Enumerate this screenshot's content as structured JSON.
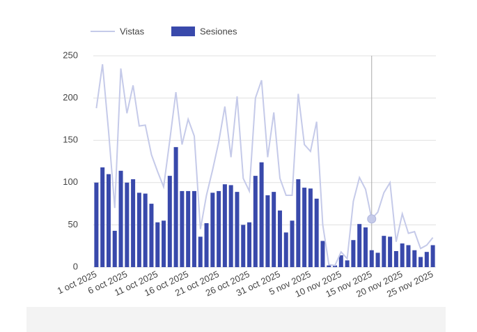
{
  "chart_data": {
    "type": "bar_line",
    "categories": [
      "1 oct 2025",
      null,
      null,
      null,
      null,
      "6 oct 2025",
      null,
      null,
      null,
      null,
      "11 oct 2025",
      null,
      null,
      null,
      null,
      "16 oct 2025",
      null,
      null,
      null,
      null,
      "21 oct 2025",
      null,
      null,
      null,
      null,
      "26 oct 2025",
      null,
      null,
      null,
      null,
      "31 oct 2025",
      null,
      null,
      null,
      null,
      "5 nov 2025",
      null,
      null,
      null,
      null,
      "10 nov 2025",
      null,
      null,
      null,
      null,
      "15 nov 2025",
      null,
      null,
      null,
      null,
      "20 nov 2025",
      null,
      null,
      null,
      null,
      "25 nov 2025"
    ],
    "series": [
      {
        "name": "Vistas",
        "color": "#c5cae9",
        "kind": "line",
        "values": [
          188,
          240,
          160,
          70,
          235,
          182,
          215,
          167,
          168,
          133,
          113,
          95,
          150,
          207,
          145,
          175,
          155,
          45,
          85,
          115,
          148,
          190,
          130,
          202,
          105,
          90,
          200,
          221,
          130,
          183,
          105,
          85,
          85,
          205,
          145,
          137,
          172,
          50,
          3,
          2,
          18,
          10,
          78,
          106,
          92,
          57,
          65,
          88,
          100,
          30,
          63,
          40,
          42,
          22,
          26,
          35
        ]
      },
      {
        "name": "Sesiones",
        "color": "#3949ab",
        "kind": "bar",
        "values": [
          100,
          118,
          110,
          43,
          114,
          100,
          104,
          88,
          87,
          75,
          53,
          55,
          108,
          142,
          90,
          90,
          90,
          36,
          52,
          88,
          90,
          98,
          97,
          89,
          50,
          53,
          108,
          124,
          85,
          89,
          67,
          41,
          55,
          104,
          94,
          93,
          81,
          31,
          2,
          2,
          14,
          8,
          32,
          51,
          47,
          20,
          17,
          37,
          36,
          19,
          28,
          26,
          20,
          12,
          18,
          26
        ]
      }
    ],
    "ylim": [
      0,
      250
    ],
    "yticks": [
      0,
      50,
      100,
      150,
      200,
      250
    ],
    "grid": true,
    "legend": "top-left",
    "highlight_index": 45
  }
}
